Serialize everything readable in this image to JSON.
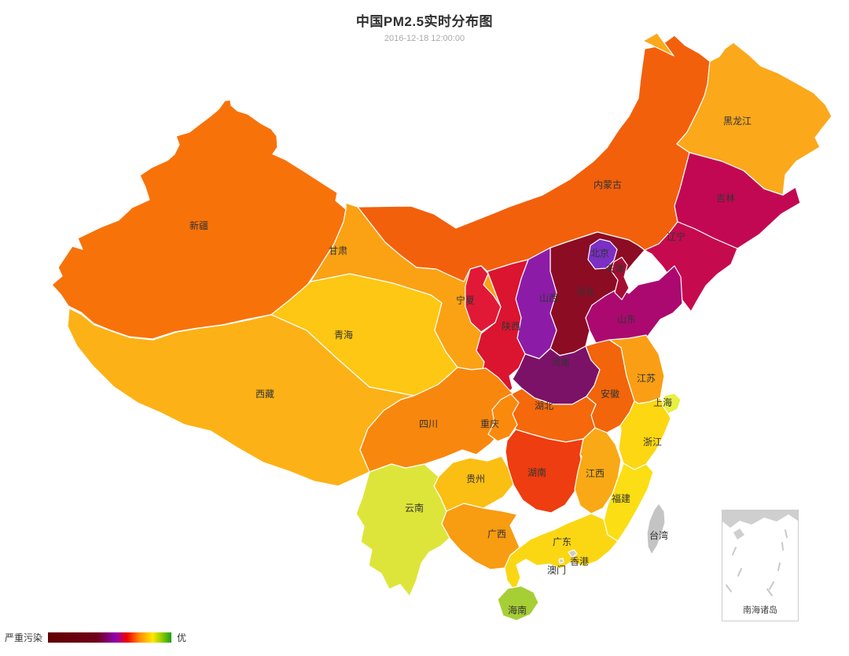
{
  "title": {
    "text": "中国PM2.5实时分布图",
    "subtext": "2016-12-18 12:00:00"
  },
  "legend": {
    "min_label": "严重污染",
    "max_label": "优",
    "gradient": [
      {
        "c": "#600000",
        "p": 0
      },
      {
        "c": "#70001A",
        "p": 40
      },
      {
        "c": "#8F00B4",
        "p": 55
      },
      {
        "c": "#F00000",
        "p": 64
      },
      {
        "c": "#FF8A00",
        "p": 74
      },
      {
        "c": "#FFE800",
        "p": 85
      },
      {
        "c": "#86C700",
        "p": 93
      },
      {
        "c": "#1F9C1F",
        "p": 100
      }
    ]
  },
  "inset": {
    "label": "南海诸岛"
  },
  "map": {
    "provinces": [
      {
        "id": "xinjiang",
        "name": "新疆",
        "color": "#F8720A"
      },
      {
        "id": "xizang",
        "name": "西藏",
        "color": "#FCB216"
      },
      {
        "id": "qinghai",
        "name": "青海",
        "color": "#FDC713"
      },
      {
        "id": "gansu",
        "name": "甘肃",
        "color": "#FAA214"
      },
      {
        "id": "neimenggu",
        "name": "内蒙古",
        "color": "#F3600C"
      },
      {
        "id": "heilongjiang",
        "name": "黑龙江",
        "color": "#FBA81B"
      },
      {
        "id": "jilin",
        "name": "吉林",
        "color": "#C30853"
      },
      {
        "id": "liaoning",
        "name": "辽宁",
        "color": "#C60A4E"
      },
      {
        "id": "hebei",
        "name": "河北",
        "color": "#8C0C24"
      },
      {
        "id": "shanxi",
        "name": "山西",
        "color": "#8C1CA8"
      },
      {
        "id": "shaanxi",
        "name": "陕西",
        "color": "#DB1430"
      },
      {
        "id": "shandong",
        "name": "山东",
        "color": "#AB0970"
      },
      {
        "id": "henan",
        "name": "河南",
        "color": "#7C1168"
      },
      {
        "id": "jiangsu",
        "name": "江苏",
        "color": "#FA9F15"
      },
      {
        "id": "anhui",
        "name": "安徽",
        "color": "#F2650A"
      },
      {
        "id": "hubei",
        "name": "湖北",
        "color": "#F5680B"
      },
      {
        "id": "sichuan",
        "name": "四川",
        "color": "#F8870D"
      },
      {
        "id": "chongqing",
        "name": "重庆",
        "color": "#F98A0C"
      },
      {
        "id": "hunan",
        "name": "湖南",
        "color": "#EE3D10"
      },
      {
        "id": "jiangxi",
        "name": "江西",
        "color": "#F9A915"
      },
      {
        "id": "zhejiang",
        "name": "浙江",
        "color": "#FCD712"
      },
      {
        "id": "shanghai",
        "name": "上海",
        "color": "#E7EF41"
      },
      {
        "id": "fujian",
        "name": "福建",
        "color": "#FBDF14"
      },
      {
        "id": "guizhou",
        "name": "贵州",
        "color": "#FBBE13"
      },
      {
        "id": "yunnan",
        "name": "云南",
        "color": "#DEE53A"
      },
      {
        "id": "guangxi",
        "name": "广西",
        "color": "#F89C11"
      },
      {
        "id": "guangdong",
        "name": "广东",
        "color": "#FBD713"
      },
      {
        "id": "hainan",
        "name": "海南",
        "color": "#A6CE35"
      },
      {
        "id": "ningxia",
        "name": "宁夏",
        "color": "#E11937"
      },
      {
        "id": "beijing",
        "name": "北京",
        "color": "#7B2FC4"
      },
      {
        "id": "tianjin",
        "name": "天津",
        "color": "#A50C33"
      },
      {
        "id": "taiwan",
        "name": "台湾",
        "color": "#C4C4C4",
        "label_color": "#8F8F8F"
      },
      {
        "id": "xianggang",
        "name": "香港",
        "color": "#CDCDCD"
      },
      {
        "id": "aomen",
        "name": "澳门",
        "color": "#CDCDCD"
      }
    ]
  }
}
